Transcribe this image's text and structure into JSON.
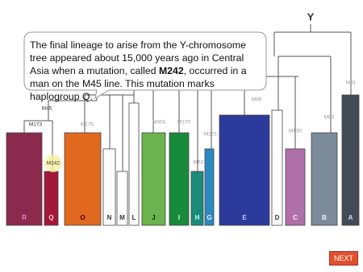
{
  "root_label": "Y",
  "callout": {
    "text_before": "The final lineage to arise from the Y-chromosome tree appeared about 15,000 years ago in Central Asia when a mutation, called ",
    "highlight": "M242",
    "text_after": ", occurred in a man on the M45 line. This mutation marks haplogroup Q."
  },
  "markers": [
    "M91",
    "M60",
    "M96",
    "M130",
    "M304",
    "M170",
    "M201",
    "M52",
    "M175",
    "M45",
    "M173",
    "M242"
  ],
  "haplogroups": [
    "R",
    "Q",
    "O",
    "N",
    "M",
    "L",
    "J",
    "I",
    "H",
    "G",
    "E",
    "D",
    "C",
    "B",
    "A"
  ],
  "button": "NEXT"
}
